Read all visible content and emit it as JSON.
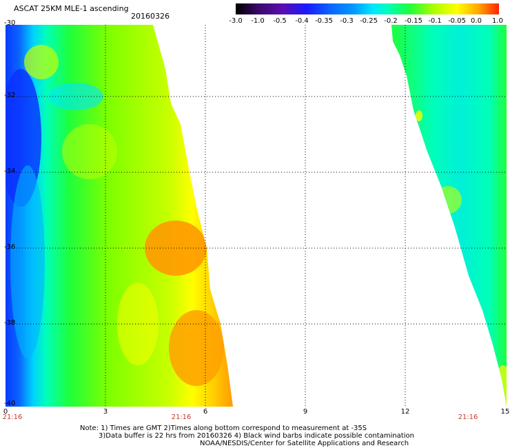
{
  "header": {
    "title": "ASCAT 25KM MLE-1 ascending",
    "date": "20160326"
  },
  "colorbar": {
    "labels": [
      "-3.0",
      "-1.0",
      "-0.5",
      "-0.4",
      "-0.35",
      "-0.3",
      "-0.25",
      "-0.2",
      "-0.15",
      "-0.1",
      "-0.05",
      "0.0",
      "1.0"
    ],
    "colors": [
      "#000000",
      "#5a0fb0",
      "#1a1aff",
      "#0a64ff",
      "#009bff",
      "#00e6ff",
      "#00ffb8",
      "#1eff3c",
      "#a8ff00",
      "#ffff00",
      "#ffaa00",
      "#ff2200"
    ]
  },
  "axes": {
    "y_ticks": [
      "-30",
      "-32",
      "-34",
      "-36",
      "-38",
      "-40"
    ],
    "x_ticks": [
      "0",
      "3",
      "6",
      "9",
      "12",
      "15"
    ],
    "time_labels": [
      "21:16",
      "21:16",
      "21:16"
    ]
  },
  "notes": [
    "Note: 1) Times are GMT 2)Times along bottom correspond to measurement at -35S",
    "3)Data buffer is 22 hrs from 20160326 4) Black wind barbs indicate possible contamination",
    "NOAA/NESDIS/Center for Satellite Applications and Research"
  ]
}
